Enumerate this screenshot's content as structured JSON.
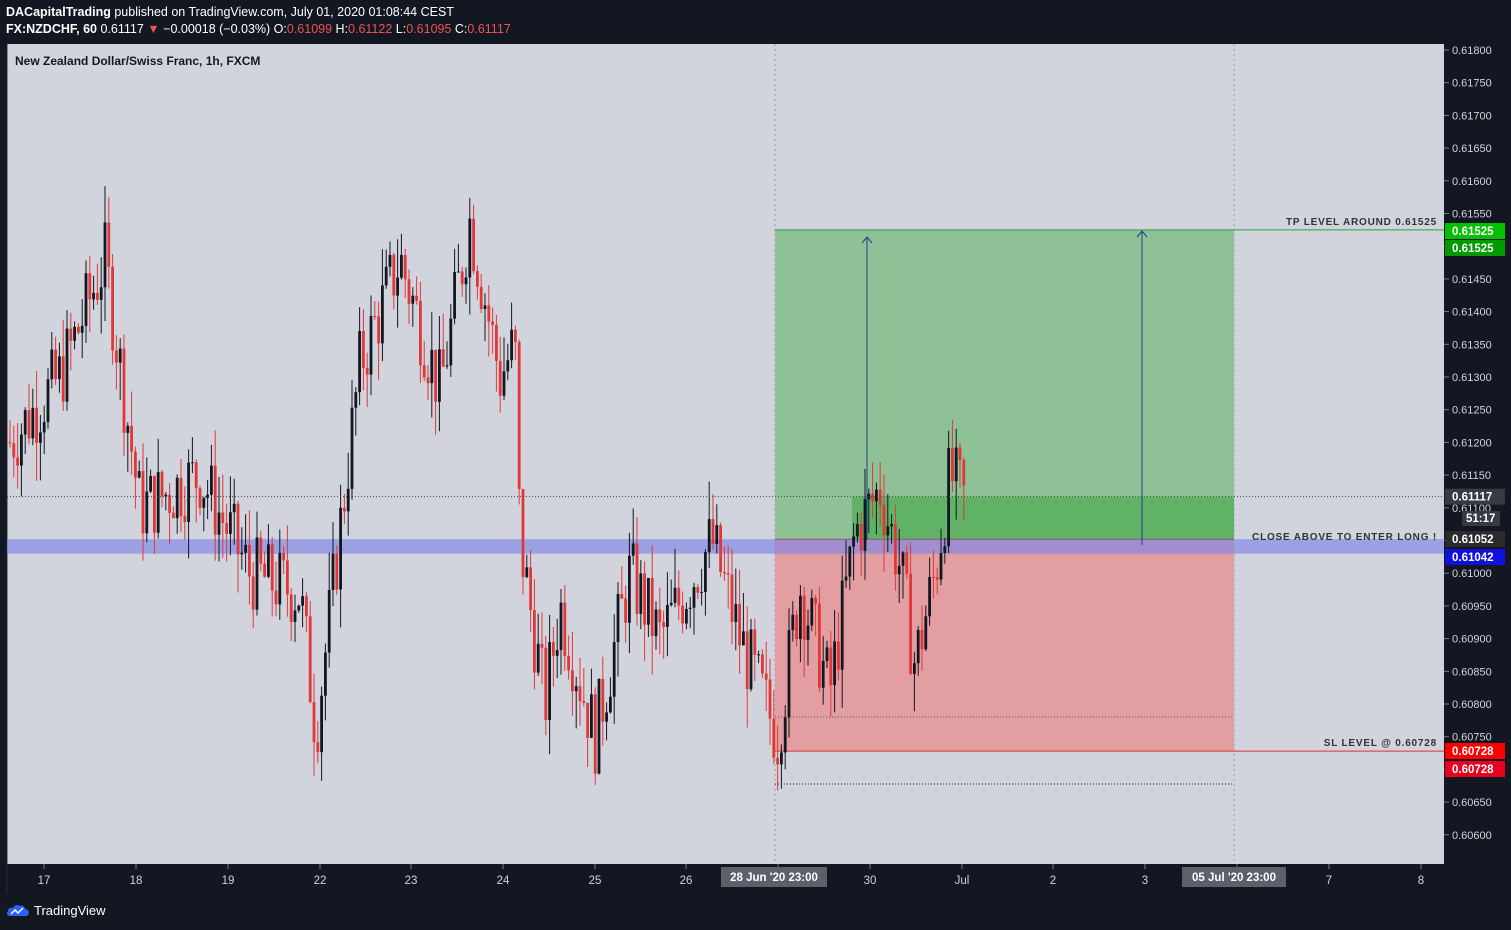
{
  "header": {
    "publisher": "DACapitalTrading",
    "published_text": "published on TradingView.com, July 01, 2020 01:08:44 CEST",
    "symbol": "FX:NZDCHF, 60",
    "last": "0.61117",
    "change": "−0.00018 (−0.03%)",
    "open_label": "O:",
    "open": "0.61099",
    "high_label": "H:",
    "high": "0.61122",
    "low_label": "L:",
    "low": "0.61095",
    "close_label": "C:",
    "close": "0.61117"
  },
  "chart": {
    "title": "New Zealand Dollar/Swiss Franc, 1h, FXCM",
    "y_ticks": [
      "0.61800",
      "0.61750",
      "0.61700",
      "0.61650",
      "0.61600",
      "0.61550",
      "0.61500",
      "0.61450",
      "0.61400",
      "0.61350",
      "0.61300",
      "0.61250",
      "0.61200",
      "0.61150",
      "0.61100",
      "0.61050",
      "0.61000",
      "0.60950",
      "0.60900",
      "0.60850",
      "0.60800",
      "0.60750",
      "0.60700",
      "0.60650",
      "0.60600"
    ],
    "x_ticks": [
      "17",
      "18",
      "19",
      "22",
      "23",
      "24",
      "25",
      "26",
      "29",
      "30",
      "Jul",
      "2",
      "3",
      "6",
      "7",
      "8"
    ],
    "x_range_start_label": "28 Jun '20  23:00",
    "x_range_end_label": "05 Jul '20  23:00",
    "annotations": {
      "tp": "TP LEVEL AROUND 0.61525",
      "entry": "CLOSE ABOVE TO ENTER LONG !",
      "sl": "SL LEVEL @ 0.60728"
    },
    "price_labels": {
      "tp_upper": "0.61525",
      "tp_lower": "0.61525",
      "last": "0.61117",
      "countdown": "51:17",
      "entry": "0.61052",
      "blue_level": "0.61042",
      "sl_upper": "0.60728",
      "sl_lower": "0.60728"
    },
    "colors": {
      "background": "#d1d4dc",
      "profit_zone": "#8fc196",
      "loss_zone": "#e29ea1",
      "blue_zone": "#7f86e6",
      "tp_label": "#00c000",
      "tp_label_dark": "#009a00",
      "entry_label": "#2b2b2b",
      "blue_label": "#1111dd",
      "sl_label": "#ff0000",
      "sl_label_dark": "#e8001e"
    }
  },
  "footer": {
    "brand": "TradingView"
  }
}
